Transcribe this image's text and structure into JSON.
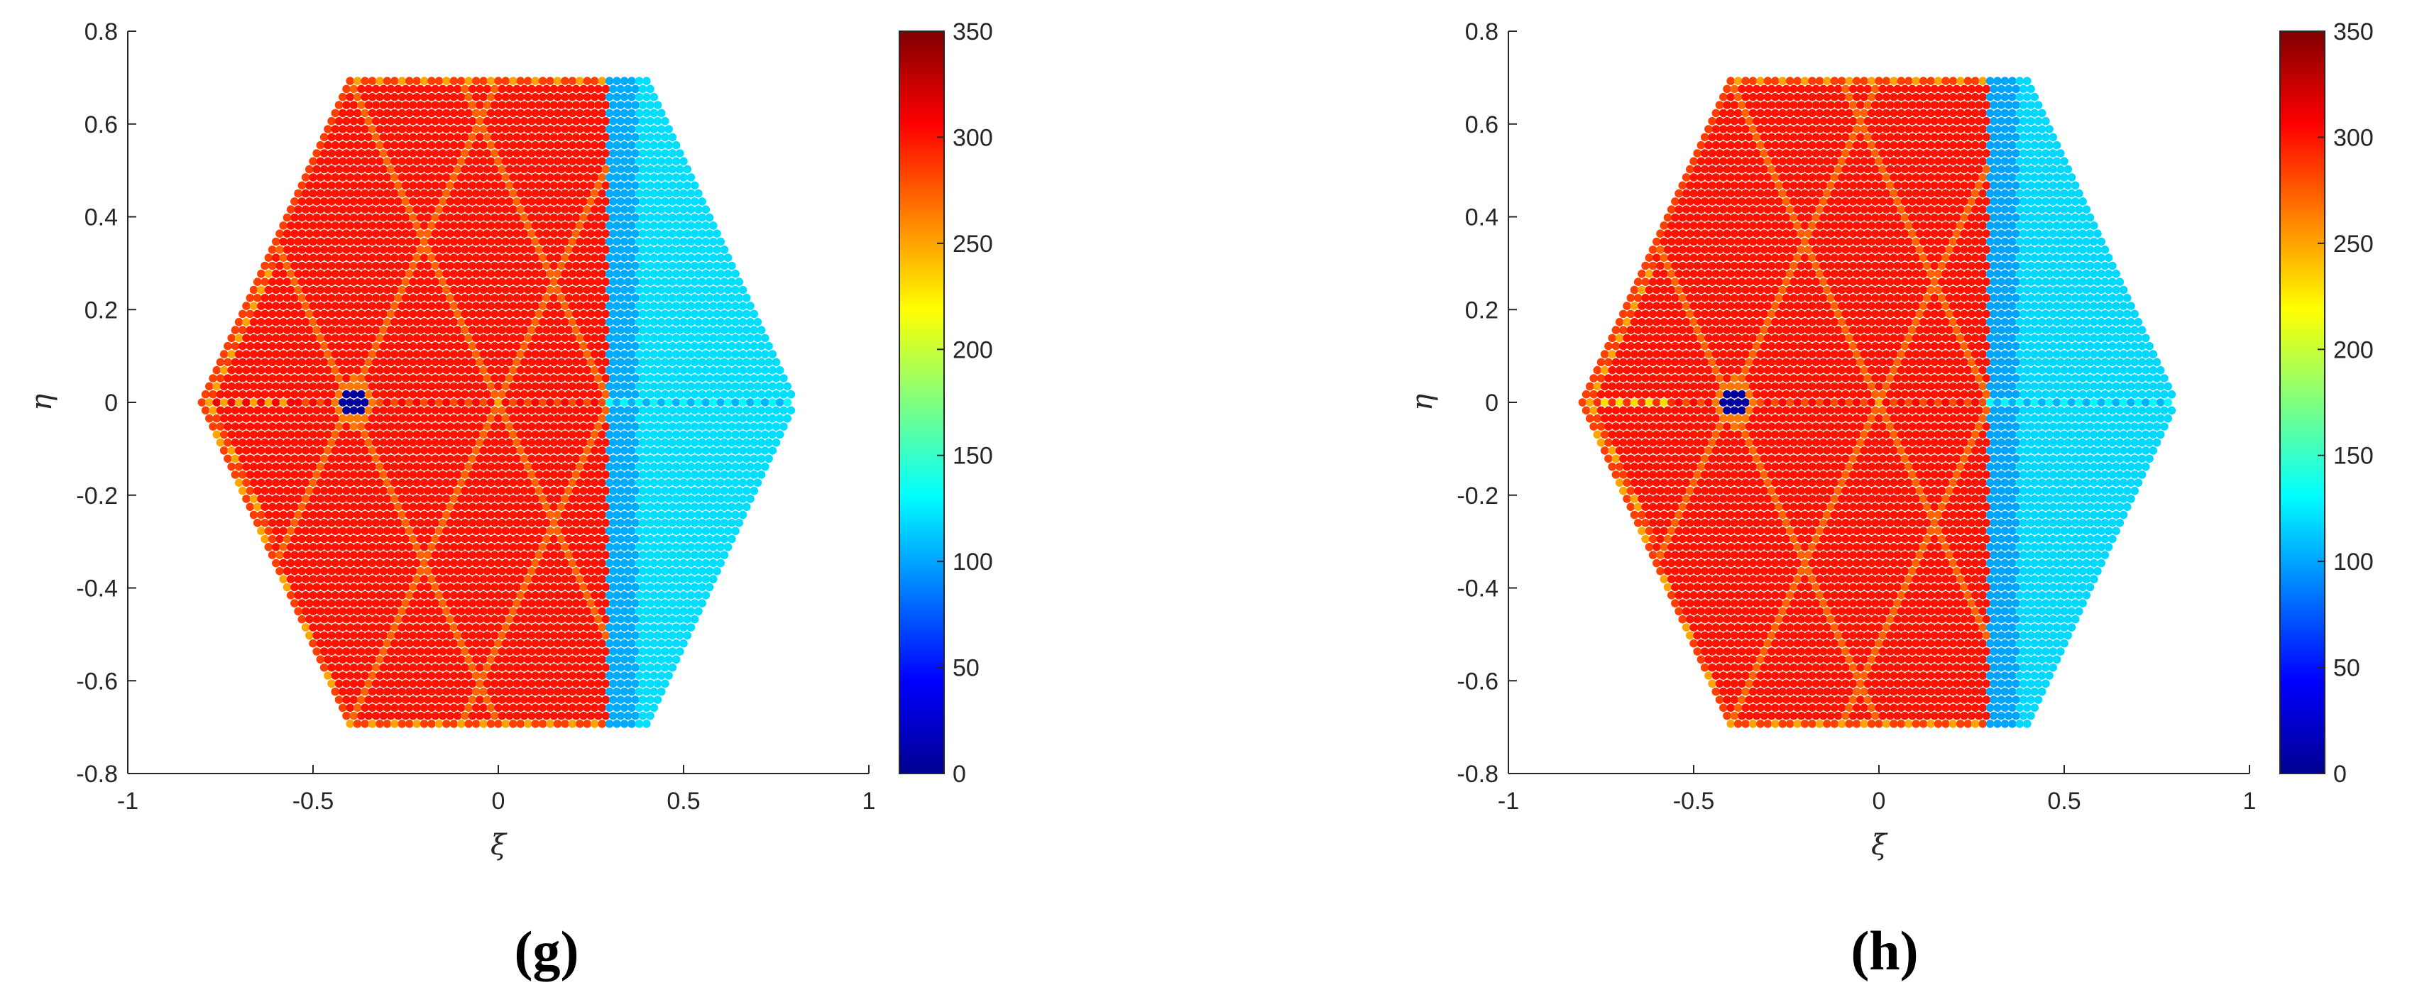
{
  "panels": [
    {
      "label": "(g)",
      "chart_data": {
        "type": "scatter",
        "subtype": "hexagonal-lattice colormap scatter",
        "xlabel": "ξ",
        "ylabel": "η",
        "xlim": [
          -1,
          1
        ],
        "ylim": [
          -0.8,
          0.8
        ],
        "xticks": [
          "-1",
          "-0.5",
          "0",
          "0.5",
          "1"
        ],
        "yticks": [
          "-0.8",
          "-0.6",
          "-0.4",
          "-0.2",
          "0",
          "0.2",
          "0.4",
          "0.6",
          "0.8"
        ],
        "colorbar": {
          "range": [
            0,
            350
          ],
          "ticks": [
            "0",
            "50",
            "100",
            "150",
            "200",
            "250",
            "300",
            "350"
          ],
          "colormap": "jet"
        },
        "region": {
          "hexagon_vertices_xy": [
            [
              -0.8,
              0
            ],
            [
              -0.4,
              0.7
            ],
            [
              0.4,
              0.7
            ],
            [
              0.8,
              0
            ],
            [
              0.4,
              -0.7
            ],
            [
              -0.4,
              -0.7
            ]
          ]
        },
        "field": {
          "left_value": 300,
          "right_value": 120,
          "split_x": 0.3,
          "hole": {
            "x": -0.39,
            "y": 0,
            "value": 10
          },
          "centerline_high_value": 250
        }
      }
    },
    {
      "label": "(h)",
      "chart_data": {
        "type": "scatter",
        "subtype": "hexagonal-lattice colormap scatter",
        "xlabel": "ξ",
        "ylabel": "η",
        "xlim": [
          -1,
          1
        ],
        "ylim": [
          -0.8,
          0.8
        ],
        "xticks": [
          "-1",
          "-0.5",
          "0",
          "0.5",
          "1"
        ],
        "yticks": [
          "-0.8",
          "-0.6",
          "-0.4",
          "-0.2",
          "0",
          "0.2",
          "0.4",
          "0.6",
          "0.8"
        ],
        "colorbar": {
          "range": [
            0,
            350
          ],
          "ticks": [
            "0",
            "50",
            "100",
            "150",
            "200",
            "250",
            "300",
            "350"
          ],
          "colormap": "jet"
        },
        "region": {
          "hexagon_vertices_xy": [
            [
              -0.8,
              0
            ],
            [
              -0.4,
              0.7
            ],
            [
              0.4,
              0.7
            ],
            [
              0.8,
              0
            ],
            [
              0.4,
              -0.7
            ],
            [
              -0.4,
              -0.7
            ]
          ]
        },
        "field": {
          "left_value": 300,
          "right_value": 118,
          "split_x": 0.3,
          "hole": {
            "x": -0.39,
            "y": 0,
            "value": 10
          },
          "centerline_high_value": 230
        }
      }
    }
  ]
}
